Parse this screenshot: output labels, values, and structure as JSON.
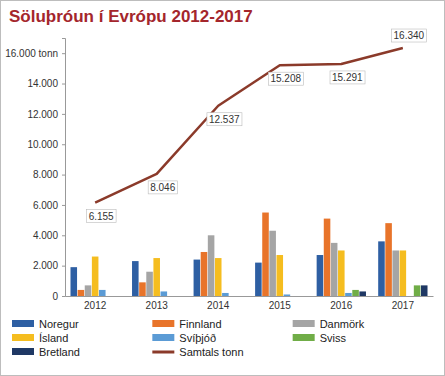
{
  "chart_data": {
    "type": "bar",
    "title": "Söluþróun í Evrópu 2012-2017",
    "categories": [
      "2012",
      "2013",
      "2014",
      "2015",
      "2016",
      "2017"
    ],
    "ylim": [
      0,
      17000
    ],
    "yticks": [
      0,
      {
        "value": 2000,
        "label": "2.000"
      },
      {
        "value": 4000,
        "label": "4.000"
      },
      {
        "value": 6000,
        "label": "6.000"
      },
      {
        "value": 8000,
        "label": "8.000"
      },
      {
        "value": 10000,
        "label": "10.000"
      },
      {
        "value": 12000,
        "label": "12.000"
      },
      {
        "value": 14000,
        "label": "14.000"
      },
      {
        "value": 16000,
        "label": "16.000 tonn"
      }
    ],
    "grid": false,
    "legend": "bottom",
    "data_labels": true,
    "series": [
      {
        "name": "Noregur",
        "type": "bar",
        "color": "#2e5fa3",
        "values": [
          1900,
          2300,
          2400,
          2200,
          2700,
          3600
        ]
      },
      {
        "name": "Finnland",
        "type": "bar",
        "color": "#e8742a",
        "values": [
          400,
          900,
          2900,
          5500,
          5100,
          4800
        ]
      },
      {
        "name": "Danmörk",
        "type": "bar",
        "color": "#a5a5a5",
        "values": [
          700,
          1600,
          4000,
          4300,
          3500,
          3000
        ]
      },
      {
        "name": "Ísland",
        "type": "bar",
        "color": "#f5bd1f",
        "values": [
          2600,
          2500,
          2500,
          2700,
          3000,
          3000
        ]
      },
      {
        "name": "Svíþjóð",
        "type": "bar",
        "color": "#5b9bd5",
        "values": [
          400,
          300,
          200,
          100,
          200,
          0
        ]
      },
      {
        "name": "Sviss",
        "type": "bar",
        "color": "#70ad47",
        "values": [
          0,
          0,
          0,
          0,
          400,
          700
        ]
      },
      {
        "name": "Bretland",
        "type": "bar",
        "color": "#1f3864",
        "values": [
          0,
          0,
          0,
          0,
          300,
          700
        ]
      },
      {
        "name": "Samtals tonn",
        "type": "line",
        "color": "#8b3a2a",
        "values": [
          6155,
          8046,
          12537,
          15208,
          15291,
          16340
        ],
        "value_labels": [
          "6.155",
          "8.046",
          "12.537",
          "15.208",
          "15.291",
          "16.340"
        ]
      }
    ]
  }
}
